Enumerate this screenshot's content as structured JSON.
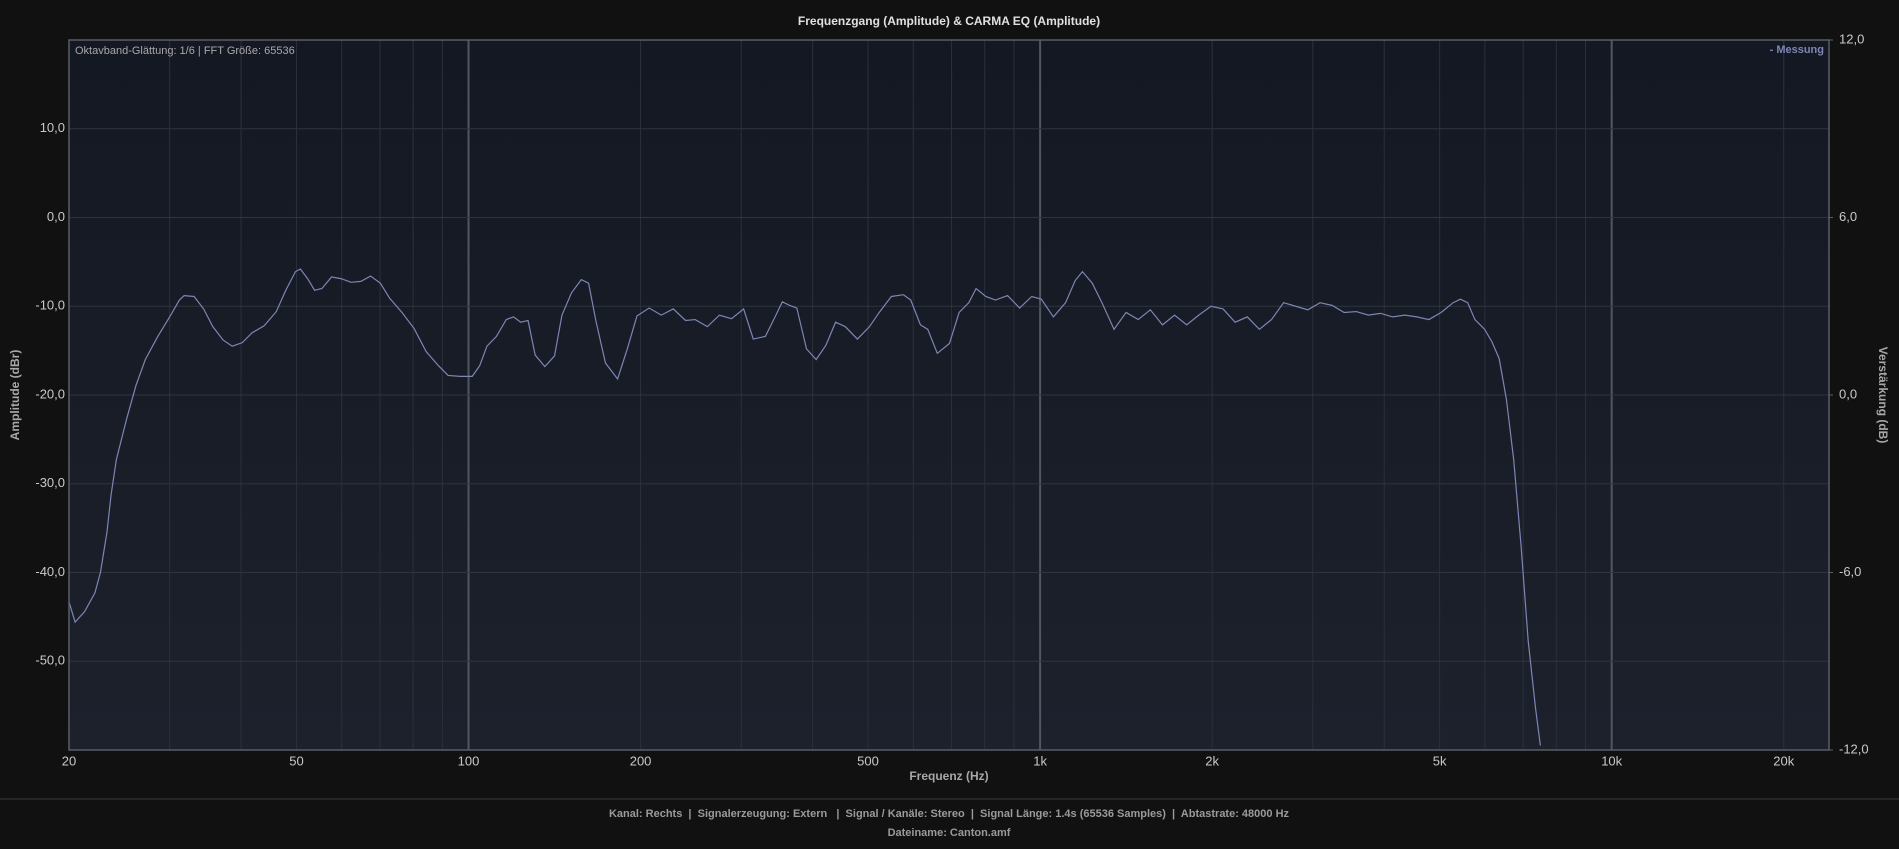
{
  "chart_data": {
    "type": "line",
    "title": "Frequenzgang (Amplitude) & CARMA EQ (Amplitude)",
    "annotation": "Oktavband-Glättung: 1/6 | FFT Größe: 65536",
    "x_label": "Frequenz (Hz)",
    "y_label": "Amplitude (dBr)",
    "y2_label": "Verstärkung (dB)",
    "log_x": true,
    "grid": true,
    "legend": "top-right",
    "xlim": [
      20,
      24000
    ],
    "ylim": [
      -60,
      20
    ],
    "y2lim": [
      -12,
      12
    ],
    "xticks": [
      20,
      50,
      100,
      200,
      500,
      {
        "value": 1000,
        "label": "1k"
      },
      {
        "value": 2000,
        "label": "2k"
      },
      {
        "value": 5000,
        "label": "5k"
      },
      {
        "value": 10000,
        "label": "10k"
      },
      {
        "value": 20000,
        "label": "20k"
      }
    ],
    "yticks": [
      {
        "value": -50,
        "label": "-50,0"
      },
      {
        "value": -40,
        "label": "-40,0"
      },
      {
        "value": -30,
        "label": "-30,0"
      },
      {
        "value": -20,
        "label": "-20,0"
      },
      {
        "value": -10,
        "label": "-10,0"
      },
      {
        "value": 0,
        "label": "0,0"
      },
      {
        "value": 10,
        "label": "10,0"
      }
    ],
    "y2ticks": [
      {
        "value": -12,
        "label": "-12,0"
      },
      {
        "value": -6,
        "label": "-6,0"
      },
      {
        "value": 0,
        "label": "0,0"
      },
      {
        "value": 6,
        "label": "6,0"
      },
      {
        "value": 12,
        "label": "12,0"
      }
    ],
    "x": [
      20,
      20.5,
      21.3,
      22.2,
      22.7,
      23.3,
      23.7,
      24.2,
      25.2,
      26.2,
      27.2,
      28.6,
      30,
      31.2,
      31.8,
      33.1,
      34.4,
      35.7,
      37.2,
      38.6,
      40.2,
      41.8,
      43.9,
      46.1,
      47.9,
      49.8,
      50.8,
      52.3,
      53.8,
      55.4,
      57.6,
      59.9,
      62.3,
      64.8,
      67.4,
      70.1,
      72.8,
      76.5,
      80.3,
      84.3,
      88.6,
      92.1,
      96.7,
      101.5,
      104.6,
      107.7,
      111.9,
      116.4,
      119.9,
      123.4,
      127.1,
      130.8,
      136,
      141.4,
      145.7,
      151.4,
      157.5,
      162.2,
      167,
      173.6,
      182.3,
      189.6,
      197.1,
      207,
      217.4,
      228.2,
      239.7,
      249.2,
      261.7,
      274.8,
      288.5,
      302.9,
      314.9,
      330.6,
      343.8,
      354,
      364.5,
      375.3,
      390.2,
      405.7,
      421.9,
      438.7,
      456.3,
      479,
      502.9,
      523,
      549.2,
      576.6,
      593.8,
      617.5,
      635.9,
      661,
      694,
      721.7,
      750.4,
      772.7,
      803.5,
      835.5,
      877.2,
      920.9,
      966.8,
      1005,
      1055,
      1108,
      1152,
      1186,
      1234,
      1283,
      1347,
      1414,
      1485,
      1559,
      1637,
      1719,
      1805,
      1895,
      1990,
      2090,
      2194,
      2304,
      2419,
      2540,
      2667,
      2800,
      2941,
      3088,
      3242,
      3404,
      3574,
      3753,
      3941,
      4138,
      4345,
      4562,
      4789,
      5029,
      5280,
      5436,
      5598,
      5764,
      5994,
      6172,
      6356,
      6544,
      6739,
      6940,
      7146,
      7359,
      7503
    ],
    "series": [
      {
        "name": "- Messung",
        "color": "#7d86b4",
        "values": [
          -43.3,
          -45.6,
          -44.4,
          -42.3,
          -40,
          -35.5,
          -31.2,
          -27.3,
          -22.8,
          -18.9,
          -16,
          -13.4,
          -11.2,
          -9.3,
          -8.8,
          -8.9,
          -10.3,
          -12.3,
          -13.8,
          -14.5,
          -14.1,
          -13,
          -12.2,
          -10.6,
          -8.2,
          -6.1,
          -5.8,
          -6.9,
          -8.2,
          -8,
          -6.7,
          -6.9,
          -7.3,
          -7.2,
          -6.6,
          -7.4,
          -9.1,
          -10.7,
          -12.5,
          -15.1,
          -16.7,
          -17.8,
          -17.9,
          -17.9,
          -16.7,
          -14.5,
          -13.4,
          -11.5,
          -11.2,
          -11.8,
          -11.6,
          -15.5,
          -16.8,
          -15.6,
          -11,
          -8.5,
          -7,
          -7.4,
          -11.6,
          -16.4,
          -18.2,
          -14.8,
          -11.1,
          -10.2,
          -11,
          -10.3,
          -11.6,
          -11.5,
          -12.3,
          -11,
          -11.4,
          -10.3,
          -13.7,
          -13.4,
          -11.2,
          -9.5,
          -9.9,
          -10.2,
          -14.8,
          -16,
          -14.4,
          -11.8,
          -12.3,
          -13.7,
          -12.3,
          -10.7,
          -8.9,
          -8.7,
          -9.3,
          -12.1,
          -12.6,
          -15.3,
          -14.2,
          -10.7,
          -9.6,
          -8,
          -8.9,
          -9.3,
          -8.8,
          -10.2,
          -8.9,
          -9.2,
          -11.2,
          -9.6,
          -7.1,
          -6.1,
          -7.4,
          -9.6,
          -12.6,
          -10.7,
          -11.5,
          -10.4,
          -12.1,
          -11,
          -12.1,
          -11,
          -10,
          -10.3,
          -11.8,
          -11.2,
          -12.6,
          -11.5,
          -9.6,
          -10,
          -10.4,
          -9.6,
          -9.9,
          -10.7,
          -10.6,
          -11,
          -10.8,
          -11.2,
          -11,
          -11.2,
          -11.5,
          -10.7,
          -9.6,
          -9.2,
          -9.6,
          -11.5,
          -12.6,
          -14,
          -15.9,
          -20.5,
          -27.3,
          -36.9,
          -47.8,
          -55.3,
          -59.5
        ]
      }
    ],
    "footer": [
      "Kanal: Rechts  |  Signalerzeugung: Extern   |  Signal / Kanäle: Stereo  |  Signal Länge: 1.4s (65536 Samples)  |  Abtastrate: 48000 Hz",
      "Dateiname: Canton.amf"
    ]
  }
}
